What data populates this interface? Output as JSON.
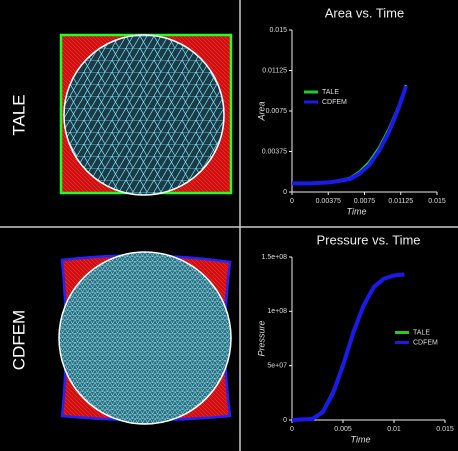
{
  "row_labels": [
    "TALE",
    "CDFEM"
  ],
  "chart_data": [
    {
      "type": "line",
      "title": "Area vs. Time",
      "x_label": "Time",
      "y_label": "Area",
      "xlim": [
        0,
        0.015
      ],
      "ylim": [
        0,
        0.015
      ],
      "xticks": [
        0,
        0.00375,
        0.0075,
        0.01125,
        0.015
      ],
      "yticks": [
        0,
        0.00375,
        0.0075,
        0.01125,
        0.015
      ],
      "legend": "upper left",
      "x": [
        0,
        0.002,
        0.004,
        0.006,
        0.007,
        0.008,
        0.009,
        0.01,
        0.011,
        0.0118
      ],
      "series": [
        {
          "name": "TALE",
          "color": "#22cc22",
          "values": [
            0.0008,
            0.0008,
            0.0009,
            0.0013,
            0.0019,
            0.0028,
            0.0041,
            0.0058,
            0.0079,
            0.0099
          ]
        },
        {
          "name": "CDFEM",
          "color": "#1a1aee",
          "values": [
            0.0008,
            0.0008,
            0.0009,
            0.0012,
            0.0017,
            0.0025,
            0.0038,
            0.0055,
            0.0077,
            0.0098
          ]
        }
      ]
    },
    {
      "type": "line",
      "title": "Pressure vs. Time",
      "x_label": "Time",
      "y_label": "Pressure",
      "xlim": [
        0,
        0.015
      ],
      "ylim": [
        0,
        150000000
      ],
      "xticks": [
        0,
        0.005,
        0.01,
        0.015
      ],
      "yticks": [
        0,
        {
          "value": 50000000,
          "label": "5e+07"
        },
        {
          "value": 100000000,
          "label": "1e+08"
        },
        {
          "value": 150000000,
          "label": "1.5e+08"
        }
      ],
      "legend": "center right",
      "x": [
        0,
        0.002,
        0.003,
        0.004,
        0.005,
        0.006,
        0.007,
        0.008,
        0.009,
        0.01,
        0.011
      ],
      "series": [
        {
          "name": "TALE",
          "color": "#22cc22",
          "values": [
            0,
            1000000,
            8000000,
            26000000,
            52000000,
            82000000,
            106000000,
            123000000,
            130000000,
            133000000,
            134000000
          ]
        },
        {
          "name": "CDFEM",
          "color": "#1a1aee",
          "values": [
            0,
            1000000,
            7000000,
            24000000,
            50000000,
            80000000,
            105000000,
            122000000,
            130000000,
            133000000,
            134000000
          ]
        }
      ]
    }
  ]
}
